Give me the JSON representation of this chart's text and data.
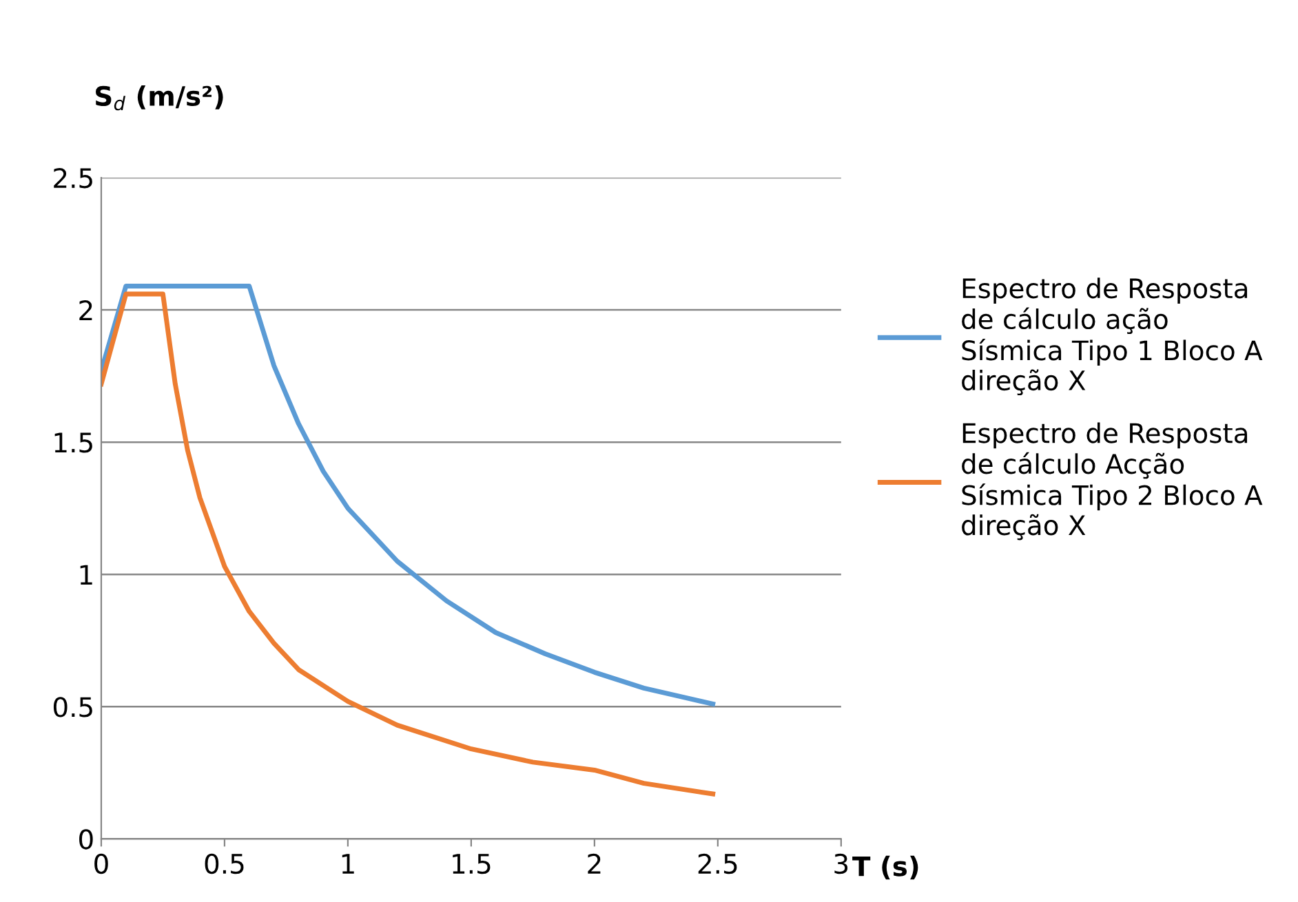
{
  "chart_data": {
    "type": "line",
    "ylabel": "S$_{d}$ (m/s²)",
    "xlabel": "T (s)",
    "xlim": [
      0,
      3
    ],
    "xticks": [
      0,
      0.5,
      1,
      1.5,
      2,
      2.5,
      3
    ],
    "ylim": [
      0,
      2.5
    ],
    "yticks": [
      0,
      0.5,
      1,
      1.5,
      2,
      2.5
    ],
    "grid": "y",
    "legend": "right",
    "marker": "none",
    "line_style": "solid",
    "series": [
      {
        "name": "Espectro de Resposta de cálculo ação Sísmica Tipo 1 Bloco A direção X",
        "color": "#5b9bd5",
        "x": [
          0,
          0.1,
          0.6,
          0.7,
          0.8,
          0.9,
          1.0,
          1.2,
          1.4,
          1.6,
          1.8,
          2.0,
          2.2,
          2.48
        ],
        "values": [
          1.77,
          2.09,
          2.09,
          1.79,
          1.57,
          1.39,
          1.25,
          1.05,
          0.9,
          0.78,
          0.7,
          0.63,
          0.57,
          0.51
        ]
      },
      {
        "name": "Espectro de Resposta de cálculo Acção Sísmica Tipo 2 Bloco A direção X",
        "color": "#ed7d31",
        "x": [
          0,
          0.1,
          0.25,
          0.3,
          0.35,
          0.4,
          0.5,
          0.6,
          0.7,
          0.8,
          1.0,
          1.2,
          1.5,
          1.75,
          2.0,
          2.2,
          2.48
        ],
        "values": [
          1.72,
          2.06,
          2.06,
          1.72,
          1.47,
          1.29,
          1.03,
          0.86,
          0.74,
          0.64,
          0.52,
          0.43,
          0.34,
          0.29,
          0.26,
          0.21,
          0.17
        ]
      }
    ]
  }
}
